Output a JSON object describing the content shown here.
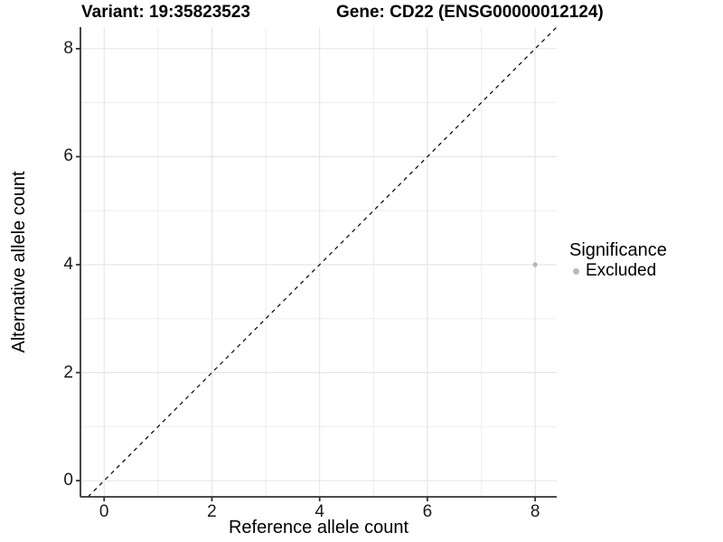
{
  "chart_data": {
    "type": "scatter",
    "title_left": "Variant: 19:35823523",
    "title_right": "Gene: CD22 (ENSG00000012124)",
    "xlabel": "Reference allele count",
    "ylabel": "Alternative allele count",
    "xlim": [
      -0.44,
      8.4
    ],
    "ylim": [
      -0.3,
      8.4
    ],
    "x_ticks": [
      0,
      2,
      4,
      6,
      8
    ],
    "y_ticks": [
      0,
      2,
      4,
      6,
      8
    ],
    "minor_ticks": [
      1,
      3,
      5,
      7
    ],
    "grid": true,
    "identity_line": {
      "style": "dashed",
      "color": "#000000",
      "dash": "4.5 4.5"
    },
    "series": [
      {
        "name": "Excluded",
        "color": "#b9b9b9",
        "point_radius": 2.7,
        "points": [
          {
            "x": 8,
            "y": 4
          }
        ]
      }
    ],
    "legend": {
      "title": "Significance",
      "position": "right",
      "entries": [
        {
          "label": "Excluded",
          "color": "#b9b9b9"
        }
      ]
    },
    "style": {
      "grid_major": "#e2e2e2",
      "grid_minor": "#ededed",
      "axis_line": "#333333",
      "tick_color": "#333333",
      "text_color": "#1a1a1a",
      "background": "#ffffff"
    }
  }
}
